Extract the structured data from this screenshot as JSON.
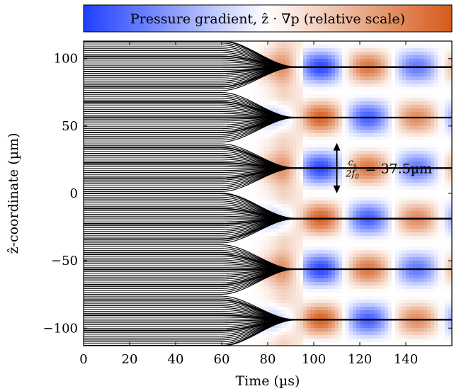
{
  "chart_data": {
    "type": "heatmap",
    "colorbar": {
      "label": "Pressure gradient, ẑ · ∇p (relative scale)",
      "colors": [
        "#1f3fff",
        "#ffffff",
        "#d55a1a"
      ]
    },
    "xlabel": "Time (µs)",
    "ylabel": "ẑ-coordinate (µm)",
    "xlim": [
      0,
      160
    ],
    "ylim": [
      -113,
      113
    ],
    "x_ticks": [
      0,
      20,
      40,
      60,
      80,
      100,
      120,
      140
    ],
    "x_tick_labels": [
      "0",
      "20",
      "40",
      "60",
      "80",
      "100",
      "120",
      "140"
    ],
    "y_ticks": [
      -100,
      -50,
      0,
      50,
      100
    ],
    "y_tick_labels": [
      "−100",
      "−50",
      "0",
      "50",
      "100"
    ],
    "wavelength_half_um": 37.5,
    "node_positions_um": [
      -93.75,
      -56.25,
      -18.75,
      18.75,
      56.25,
      93.75
    ],
    "trajectory_convergence_time_us": [
      60,
      92
    ],
    "field_onset_time_us": 70,
    "field_cell_centers_time_us": [
      103,
      124,
      145
    ],
    "annotation": {
      "frac_numerator": "c",
      "frac_numerator_sub": "s",
      "frac_denominator": "2f",
      "frac_denominator_sub": "0",
      "equals": "= 37.5µm",
      "y_from_um": 37.5,
      "y_to_um": 0,
      "x_time_us": 110
    }
  }
}
